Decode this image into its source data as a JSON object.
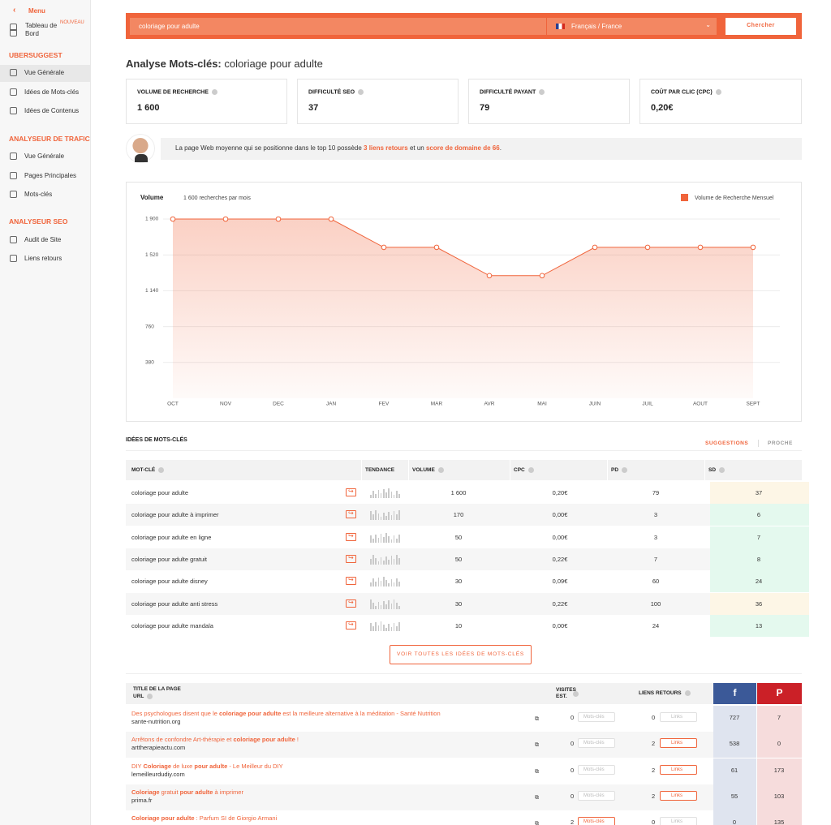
{
  "sidebar": {
    "menu": "Menu",
    "dashboard": "Tableau de Bord",
    "badge": "NOUVEAU",
    "sections": [
      {
        "title": "UBERSUGGEST",
        "items": [
          "Vue Générale",
          "Idées de Mots-clés",
          "Idées de Contenus"
        ]
      },
      {
        "title": "ANALYSEUR DE TRAFIC",
        "items": [
          "Vue Générale",
          "Pages Principales",
          "Mots-clés"
        ]
      },
      {
        "title": "ANALYSEUR SEO",
        "items": [
          "Audit de Site",
          "Liens retours"
        ]
      }
    ]
  },
  "search": {
    "query": "coloriage pour adulte",
    "language": "Français / France",
    "button": "Chercher"
  },
  "heading": {
    "label": "Analyse Mots-clés:",
    "keyword": "coloriage pour adulte"
  },
  "metrics": [
    {
      "label": "VOLUME DE RECHERCHE",
      "value": "1 600"
    },
    {
      "label": "DIFFICULTÉ SEO",
      "value": 37
    },
    {
      "label": "DIFFICULTÉ PAYANT",
      "value": 79
    },
    {
      "label": "COÛT PAR CLIC (CPC)",
      "value": "0,20€"
    }
  ],
  "banner": {
    "text1": "La page Web moyenne qui se positionne dans le top 10 possède",
    "highlight1": "3 liens retours",
    "text2": "et un",
    "highlight2": "score de domaine de 66",
    "text3": "."
  },
  "chart_data": {
    "type": "line",
    "title": "Volume",
    "subtitle": "1 600 recherches par mois",
    "categories": [
      "OCT",
      "NOV",
      "DEC",
      "JAN",
      "FEV",
      "MAR",
      "AVR",
      "MAI",
      "JUIN",
      "JUIL",
      "AOUT",
      "SEPT"
    ],
    "series": [
      {
        "name": "Volume de Recherche Mensuel",
        "color": "#f0643b",
        "values": [
          1900,
          1900,
          1900,
          1900,
          1600,
          1600,
          1300,
          1300,
          1600,
          1600,
          1600,
          1600
        ]
      }
    ],
    "ylim": [
      0,
      1900
    ],
    "yticks": [
      380,
      760,
      {
        "value": 1140,
        "label": "1 140"
      },
      {
        "value": 1520,
        "label": "1 520"
      },
      {
        "value": 1900,
        "label": "1 900"
      }
    ],
    "grid": true,
    "legend": "top-right"
  },
  "keywords": {
    "title": "IDÉES DE MOTS-CLÉS",
    "tabs": [
      "SUGGESTIONS",
      "PROCHE"
    ],
    "headers": [
      "MOT-CLÉ",
      "TENDANCE",
      "VOLUME",
      "CPC",
      "PD",
      "SD"
    ],
    "rows": [
      [
        "coloriage pour adulte",
        "1 600",
        "0,20€",
        79,
        37
      ],
      [
        "coloriage pour adulte à imprimer",
        170,
        "0,00€",
        3,
        6
      ],
      [
        "coloriage pour adulte en ligne",
        50,
        "0,00€",
        3,
        7
      ],
      [
        "coloriage pour adulte gratuit",
        50,
        "0,22€",
        7,
        8
      ],
      [
        "coloriage pour adulte disney",
        30,
        "0,09€",
        60,
        24
      ],
      [
        "coloriage pour adulte anti stress",
        30,
        "0,22€",
        100,
        36
      ],
      [
        "coloriage pour adulte mandala",
        10,
        "0,00€",
        24,
        13
      ]
    ],
    "button": "VOIR TOUTES LES IDÉES DE MOTS-CLÉS"
  },
  "pages": {
    "headers": {
      "title": "TITLE DE LA PAGE",
      "url": "URL",
      "visits": "VISITES EST.",
      "backlinks": "LIENS RETOURS"
    },
    "keywords_button": "Mots-clés",
    "links_button": "Links",
    "rows": [
      {
        "title": [
          {
            "text": "Des psychologues disent que le ",
            "bold": false
          },
          {
            "text": "coloriage pour adulte",
            "bold": true
          },
          {
            "text": " est la meilleure alternative à la méditation - Santé Nutrition",
            "bold": false
          }
        ],
        "url": "sante-nutrition.org",
        "visits": 0,
        "backlinks": 0,
        "facebook": 727,
        "pinterest": 7
      },
      {
        "title": [
          {
            "text": "Arrêtons de confondre Art-thérapie et ",
            "bold": false
          },
          {
            "text": "coloriage pour adulte",
            "bold": true
          },
          {
            "text": " !",
            "bold": false
          }
        ],
        "url": "arttherapieactu.com",
        "visits": 0,
        "backlinks": 2,
        "facebook": 538,
        "pinterest": 0
      },
      {
        "title": [
          {
            "text": "DIY ",
            "bold": false
          },
          {
            "text": "Coloriage",
            "bold": true
          },
          {
            "text": " de luxe ",
            "bold": false
          },
          {
            "text": "pour adulte",
            "bold": true
          },
          {
            "text": " - Le Meilleur du DIY",
            "bold": false
          }
        ],
        "url": "lemeilleurdudiy.com",
        "visits": 0,
        "backlinks": 2,
        "facebook": 61,
        "pinterest": 173
      },
      {
        "title": [
          {
            "text": "Coloriage",
            "bold": true
          },
          {
            "text": " gratuit ",
            "bold": false
          },
          {
            "text": "pour adulte",
            "bold": true
          },
          {
            "text": " à imprimer",
            "bold": false
          }
        ],
        "url": "prima.fr",
        "visits": 0,
        "backlinks": 2,
        "facebook": 55,
        "pinterest": 103
      },
      {
        "title": [
          {
            "text": "Coloriage pour adulte",
            "bold": true
          },
          {
            "text": " : Parfum SI de Giorgio Armani",
            "bold": false
          }
        ],
        "url": "",
        "visits": 2,
        "backlinks": 0,
        "facebook": 0,
        "pinterest": 135
      }
    ]
  }
}
